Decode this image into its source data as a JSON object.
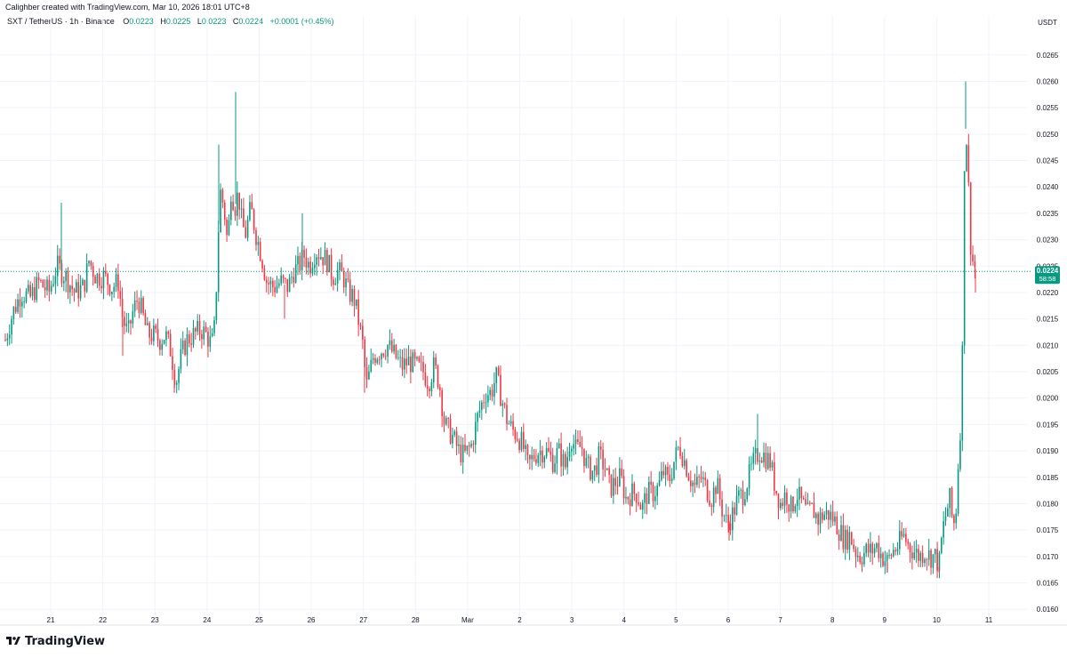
{
  "credit": "Calighber created with TradingView.com, Mar 10, 2026 18:01 UTC+8",
  "legend": {
    "symbol": "SXT / TetherUS · 1h · Binance",
    "open_label": "O",
    "open": "0.0223",
    "high_label": "H",
    "high": "0.0225",
    "low_label": "L",
    "low": "0.0223",
    "close_label": "C",
    "close": "0.0224",
    "change": "+0.0001 (+0.45%)"
  },
  "brand": {
    "icon": "tradingview-logo-icon",
    "name": "TradingView"
  },
  "colors": {
    "up": "#089981",
    "down": "#f23645",
    "price_line": "#089981",
    "grid": "#f0f3fa"
  },
  "chart_data": {
    "type": "candlestick",
    "interval": "1h",
    "currency": "USDT",
    "ylim": [
      0.0157,
      0.0269
    ],
    "y_ticks": [
      "0.0160",
      "0.0165",
      "0.0170",
      "0.0175",
      "0.0180",
      "0.0185",
      "0.0190",
      "0.0195",
      "0.0200",
      "0.0205",
      "0.0210",
      "0.0215",
      "0.0220",
      "0.0225",
      "0.0230",
      "0.0235",
      "0.0240",
      "0.0245",
      "0.0250",
      "0.0255",
      "0.0260",
      "0.0265"
    ],
    "x_ticks": [
      "21",
      "22",
      "23",
      "24",
      "25",
      "26",
      "27",
      "28",
      "Mar",
      "2",
      "3",
      "4",
      "5",
      "6",
      "7",
      "8",
      "9",
      "10",
      "11"
    ],
    "last_price": "0.0224",
    "countdown": "58:58",
    "path": [
      [
        0,
        0.021
      ],
      [
        6,
        0.0211
      ],
      [
        14,
        0.0216
      ],
      [
        24,
        0.022
      ],
      [
        34,
        0.0219
      ],
      [
        44,
        0.0222
      ],
      [
        55,
        0.022
      ],
      [
        64,
        0.0225
      ],
      [
        74,
        0.0223
      ],
      [
        84,
        0.022
      ],
      [
        94,
        0.0221
      ],
      [
        100,
        0.0226
      ],
      [
        108,
        0.0223
      ],
      [
        117,
        0.0223
      ],
      [
        126,
        0.0221
      ],
      [
        133,
        0.0222
      ],
      [
        138,
        0.0215
      ],
      [
        144,
        0.0212
      ],
      [
        149,
        0.0216
      ],
      [
        155,
        0.0219
      ],
      [
        160,
        0.0216
      ],
      [
        166,
        0.0212
      ],
      [
        172,
        0.0212
      ],
      [
        180,
        0.0211
      ],
      [
        186,
        0.0212
      ],
      [
        192,
        0.0209
      ],
      [
        198,
        0.0203
      ],
      [
        204,
        0.0208
      ],
      [
        210,
        0.0211
      ],
      [
        218,
        0.0212
      ],
      [
        226,
        0.0213
      ],
      [
        232,
        0.0212
      ],
      [
        238,
        0.021
      ],
      [
        242,
        0.0214
      ],
      [
        245,
        0.023
      ],
      [
        248,
        0.0239
      ],
      [
        252,
        0.0236
      ],
      [
        256,
        0.0229
      ],
      [
        260,
        0.024
      ],
      [
        264,
        0.0236
      ],
      [
        268,
        0.0239
      ],
      [
        272,
        0.0233
      ],
      [
        276,
        0.0231
      ],
      [
        282,
        0.0236
      ],
      [
        288,
        0.0231
      ],
      [
        294,
        0.0227
      ],
      [
        300,
        0.0222
      ],
      [
        308,
        0.0221
      ],
      [
        316,
        0.0222
      ],
      [
        324,
        0.0221
      ],
      [
        330,
        0.0224
      ],
      [
        336,
        0.0225
      ],
      [
        342,
        0.0227
      ],
      [
        348,
        0.0225
      ],
      [
        355,
        0.0228
      ],
      [
        362,
        0.0227
      ],
      [
        368,
        0.0226
      ],
      [
        374,
        0.0223
      ],
      [
        380,
        0.0224
      ],
      [
        386,
        0.0223
      ],
      [
        392,
        0.022
      ],
      [
        398,
        0.0219
      ],
      [
        404,
        0.0214
      ],
      [
        408,
        0.021
      ],
      [
        412,
        0.0202
      ],
      [
        420,
        0.0208
      ],
      [
        428,
        0.0209
      ],
      [
        436,
        0.021
      ],
      [
        444,
        0.0208
      ],
      [
        452,
        0.0206
      ],
      [
        460,
        0.0207
      ],
      [
        468,
        0.0206
      ],
      [
        476,
        0.0205
      ],
      [
        482,
        0.0203
      ],
      [
        488,
        0.0206
      ],
      [
        494,
        0.0203
      ],
      [
        500,
        0.0195
      ],
      [
        508,
        0.0193
      ],
      [
        516,
        0.019
      ],
      [
        522,
        0.0189
      ],
      [
        530,
        0.0191
      ],
      [
        538,
        0.0197
      ],
      [
        546,
        0.0201
      ],
      [
        552,
        0.0201
      ],
      [
        558,
        0.0204
      ],
      [
        564,
        0.02
      ],
      [
        570,
        0.0196
      ],
      [
        576,
        0.0194
      ],
      [
        582,
        0.0193
      ],
      [
        588,
        0.0191
      ],
      [
        594,
        0.0187
      ],
      [
        600,
        0.0189
      ],
      [
        606,
        0.019
      ],
      [
        614,
        0.019
      ],
      [
        622,
        0.0188
      ],
      [
        628,
        0.019
      ],
      [
        636,
        0.0187
      ],
      [
        642,
        0.0193
      ],
      [
        648,
        0.019
      ],
      [
        654,
        0.0191
      ],
      [
        660,
        0.0187
      ],
      [
        668,
        0.0186
      ],
      [
        674,
        0.0189
      ],
      [
        680,
        0.0187
      ],
      [
        686,
        0.0183
      ],
      [
        692,
        0.0184
      ],
      [
        698,
        0.0185
      ],
      [
        704,
        0.0181
      ],
      [
        710,
        0.0182
      ],
      [
        716,
        0.0182
      ],
      [
        722,
        0.0179
      ],
      [
        728,
        0.0182
      ],
      [
        734,
        0.0182
      ],
      [
        740,
        0.0183
      ],
      [
        746,
        0.0186
      ],
      [
        752,
        0.0184
      ],
      [
        758,
        0.0188
      ],
      [
        764,
        0.0191
      ],
      [
        770,
        0.0188
      ],
      [
        776,
        0.0185
      ],
      [
        782,
        0.0183
      ],
      [
        788,
        0.0185
      ],
      [
        794,
        0.0183
      ],
      [
        800,
        0.0181
      ],
      [
        806,
        0.0184
      ],
      [
        812,
        0.0179
      ],
      [
        818,
        0.0176
      ],
      [
        824,
        0.0178
      ],
      [
        830,
        0.0181
      ],
      [
        836,
        0.0182
      ],
      [
        842,
        0.0185
      ],
      [
        848,
        0.0188
      ],
      [
        854,
        0.019
      ],
      [
        860,
        0.0189
      ],
      [
        866,
        0.0188
      ],
      [
        872,
        0.0183
      ],
      [
        878,
        0.018
      ],
      [
        884,
        0.0182
      ],
      [
        890,
        0.0179
      ],
      [
        896,
        0.0182
      ],
      [
        902,
        0.018
      ],
      [
        908,
        0.0178
      ],
      [
        914,
        0.0179
      ],
      [
        920,
        0.0177
      ],
      [
        926,
        0.0178
      ],
      [
        932,
        0.0178
      ],
      [
        938,
        0.0177
      ],
      [
        944,
        0.0175
      ],
      [
        950,
        0.0173
      ],
      [
        956,
        0.0174
      ],
      [
        962,
        0.0171
      ],
      [
        968,
        0.017
      ],
      [
        974,
        0.0171
      ],
      [
        980,
        0.0171
      ],
      [
        986,
        0.0172
      ],
      [
        992,
        0.017
      ],
      [
        998,
        0.0169
      ],
      [
        1004,
        0.0171
      ],
      [
        1010,
        0.0172
      ],
      [
        1016,
        0.0174
      ],
      [
        1022,
        0.0172
      ],
      [
        1028,
        0.0171
      ],
      [
        1034,
        0.017
      ],
      [
        1040,
        0.0171
      ],
      [
        1046,
        0.017
      ],
      [
        1052,
        0.017
      ],
      [
        1056,
        0.0168
      ],
      [
        1060,
        0.0175
      ],
      [
        1064,
        0.0178
      ],
      [
        1068,
        0.0181
      ],
      [
        1071,
        0.0177
      ],
      [
        1074,
        0.0176
      ],
      [
        1076,
        0.0181
      ],
      [
        1078,
        0.0189
      ],
      [
        1081,
        0.0197
      ],
      [
        1083,
        0.0215
      ],
      [
        1084,
        0.0242
      ],
      [
        1086,
        0.0251
      ],
      [
        1088,
        0.0247
      ],
      [
        1090,
        0.0236
      ],
      [
        1092,
        0.0228
      ],
      [
        1094,
        0.0226
      ],
      [
        1096,
        0.0225
      ],
      [
        1098,
        0.0224
      ]
    ],
    "spikes": [
      [
        69,
        0.0237
      ],
      [
        265,
        0.0258
      ],
      [
        246,
        0.0248
      ],
      [
        340,
        0.0235
      ],
      [
        558,
        0.0206
      ],
      [
        852,
        0.0197
      ],
      [
        196,
        0.0201
      ],
      [
        138,
        0.0208
      ],
      [
        320,
        0.0215
      ],
      [
        410,
        0.0201
      ],
      [
        820,
        0.0173
      ],
      [
        998,
        0.0167
      ],
      [
        1056,
        0.0167
      ],
      [
        1086,
        0.026
      ],
      [
        1097,
        0.022
      ]
    ]
  }
}
